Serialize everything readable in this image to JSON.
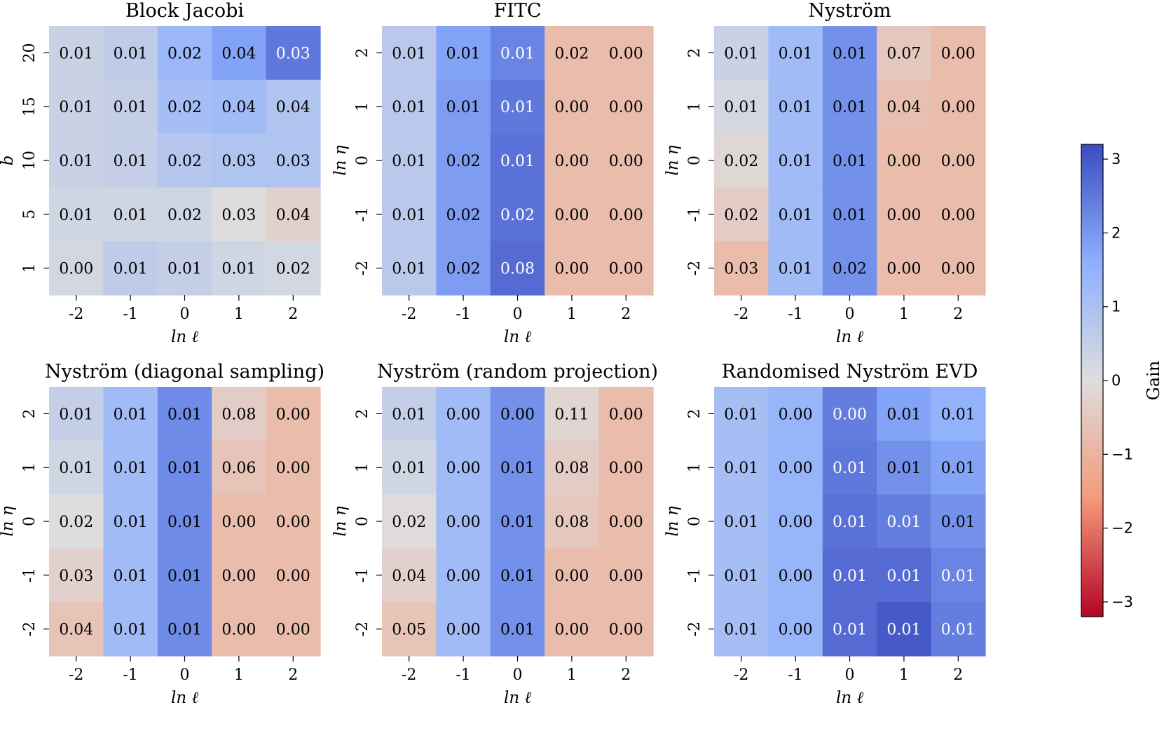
{
  "colormap": {
    "name": "coolwarm",
    "vmin": -3.2,
    "vmax": 3.2,
    "low_color": "#b40426",
    "mid_color": "#dddddd",
    "high_color": "#3b4cc0"
  },
  "colorbar": {
    "label": "Gain",
    "ticks": [
      "3",
      "2",
      "1",
      "0",
      "−1",
      "−2",
      "−3"
    ],
    "tick_values": [
      3,
      2,
      1,
      0,
      -1,
      -2,
      -3
    ]
  },
  "chart_data": [
    {
      "type": "heatmap",
      "title": "Block Jacobi",
      "xlabel": "ln ℓ",
      "ylabel": "b",
      "x_ticks": [
        "-2",
        "-1",
        "0",
        "1",
        "2"
      ],
      "y_ticks": [
        "20",
        "15",
        "10",
        "5",
        "1"
      ],
      "labels": [
        [
          "0.01",
          "0.01",
          "0.02",
          "0.04",
          "0.03"
        ],
        [
          "0.01",
          "0.01",
          "0.02",
          "0.04",
          "0.04"
        ],
        [
          "0.01",
          "0.01",
          "0.02",
          "0.03",
          "0.03"
        ],
        [
          "0.01",
          "0.01",
          "0.02",
          "0.03",
          "0.04"
        ],
        [
          "0.00",
          "0.01",
          "0.01",
          "0.01",
          "0.02"
        ]
      ],
      "gain": [
        [
          0.4,
          0.6,
          1.3,
          1.8,
          2.5
        ],
        [
          0.4,
          0.5,
          1.1,
          1.2,
          0.9
        ],
        [
          0.4,
          0.5,
          0.8,
          0.9,
          0.9
        ],
        [
          0.3,
          0.3,
          0.3,
          0.0,
          -0.3
        ],
        [
          0.2,
          0.6,
          0.5,
          0.3,
          0.2
        ]
      ]
    },
    {
      "type": "heatmap",
      "title": "FITC",
      "xlabel": "ln ℓ",
      "ylabel": "ln η",
      "x_ticks": [
        "-2",
        "-1",
        "0",
        "1",
        "2"
      ],
      "y_ticks": [
        "2",
        "1",
        "0",
        "-1",
        "-2"
      ],
      "labels": [
        [
          "0.01",
          "0.01",
          "0.01",
          "0.02",
          "0.00"
        ],
        [
          "0.01",
          "0.01",
          "0.01",
          "0.00",
          "0.00"
        ],
        [
          "0.01",
          "0.02",
          "0.01",
          "0.00",
          "0.00"
        ],
        [
          "0.01",
          "0.02",
          "0.02",
          "0.00",
          "0.00"
        ],
        [
          "0.01",
          "0.02",
          "0.08",
          "0.00",
          "0.00"
        ]
      ],
      "gain": [
        [
          0.7,
          1.8,
          2.3,
          -0.8,
          -0.8
        ],
        [
          0.7,
          1.9,
          2.5,
          -0.8,
          -0.8
        ],
        [
          0.7,
          1.9,
          2.6,
          -0.8,
          -0.8
        ],
        [
          0.7,
          1.9,
          2.6,
          -0.8,
          -0.8
        ],
        [
          0.7,
          1.9,
          2.7,
          -0.8,
          -0.8
        ]
      ]
    },
    {
      "type": "heatmap",
      "title": "Nyström",
      "xlabel": "ln ℓ",
      "ylabel": "ln η",
      "x_ticks": [
        "-2",
        "-1",
        "0",
        "1",
        "2"
      ],
      "y_ticks": [
        "2",
        "1",
        "0",
        "-1",
        "-2"
      ],
      "labels": [
        [
          "0.01",
          "0.01",
          "0.01",
          "0.07",
          "0.00"
        ],
        [
          "0.01",
          "0.01",
          "0.01",
          "0.04",
          "0.00"
        ],
        [
          "0.02",
          "0.01",
          "0.01",
          "0.00",
          "0.00"
        ],
        [
          "0.02",
          "0.01",
          "0.01",
          "0.00",
          "0.00"
        ],
        [
          "0.03",
          "0.01",
          "0.02",
          "0.00",
          "0.00"
        ]
      ],
      "gain": [
        [
          0.4,
          1.2,
          2.1,
          -0.5,
          -0.8
        ],
        [
          0.2,
          1.2,
          2.1,
          -0.7,
          -0.8
        ],
        [
          -0.15,
          1.2,
          2.1,
          -0.8,
          -0.8
        ],
        [
          -0.4,
          1.2,
          2.1,
          -0.8,
          -0.8
        ],
        [
          -0.8,
          1.2,
          2.1,
          -0.8,
          -0.8
        ]
      ]
    },
    {
      "type": "heatmap",
      "title": "Nyström (diagonal sampling)",
      "xlabel": "ln ℓ",
      "ylabel": "ln η",
      "x_ticks": [
        "-2",
        "-1",
        "0",
        "1",
        "2"
      ],
      "y_ticks": [
        "2",
        "1",
        "0",
        "-1",
        "-2"
      ],
      "labels": [
        [
          "0.01",
          "0.01",
          "0.01",
          "0.08",
          "0.00"
        ],
        [
          "0.01",
          "0.01",
          "0.01",
          "0.06",
          "0.00"
        ],
        [
          "0.02",
          "0.01",
          "0.01",
          "0.00",
          "0.00"
        ],
        [
          "0.03",
          "0.01",
          "0.01",
          "0.00",
          "0.00"
        ],
        [
          "0.04",
          "0.01",
          "0.01",
          "0.00",
          "0.00"
        ]
      ],
      "gain": [
        [
          0.5,
          1.2,
          2.2,
          -0.4,
          -0.8
        ],
        [
          0.3,
          1.2,
          2.2,
          -0.6,
          -0.8
        ],
        [
          0.0,
          1.2,
          2.2,
          -0.8,
          -0.8
        ],
        [
          -0.3,
          1.2,
          2.2,
          -0.8,
          -0.8
        ],
        [
          -0.6,
          1.2,
          2.2,
          -0.8,
          -0.8
        ]
      ]
    },
    {
      "type": "heatmap",
      "title": "Nyström (random projection)",
      "xlabel": "ln ℓ",
      "ylabel": "ln η",
      "x_ticks": [
        "-2",
        "-1",
        "0",
        "1",
        "2"
      ],
      "y_ticks": [
        "2",
        "1",
        "0",
        "-1",
        "-2"
      ],
      "labels": [
        [
          "0.01",
          "0.00",
          "0.00",
          "0.11",
          "0.00"
        ],
        [
          "0.01",
          "0.00",
          "0.01",
          "0.08",
          "0.00"
        ],
        [
          "0.02",
          "0.00",
          "0.01",
          "0.08",
          "0.00"
        ],
        [
          "0.04",
          "0.00",
          "0.01",
          "0.00",
          "0.00"
        ],
        [
          "0.05",
          "0.00",
          "0.01",
          "0.00",
          "0.00"
        ]
      ],
      "gain": [
        [
          0.5,
          1.2,
          2.1,
          -0.2,
          -0.8
        ],
        [
          0.3,
          1.2,
          2.1,
          -0.4,
          -0.8
        ],
        [
          -0.05,
          1.2,
          2.1,
          -0.5,
          -0.8
        ],
        [
          -0.3,
          1.2,
          2.1,
          -0.8,
          -0.8
        ],
        [
          -0.6,
          1.2,
          2.1,
          -0.8,
          -0.8
        ]
      ]
    },
    {
      "type": "heatmap",
      "title": "Randomised Nyström EVD",
      "xlabel": "ln ℓ",
      "ylabel": "ln η",
      "x_ticks": [
        "-2",
        "-1",
        "0",
        "1",
        "2"
      ],
      "y_ticks": [
        "2",
        "1",
        "0",
        "-1",
        "-2"
      ],
      "labels": [
        [
          "0.01",
          "0.00",
          "0.00",
          "0.01",
          "0.01"
        ],
        [
          "0.01",
          "0.00",
          "0.01",
          "0.01",
          "0.01"
        ],
        [
          "0.01",
          "0.00",
          "0.01",
          "0.01",
          "0.01"
        ],
        [
          "0.01",
          "0.00",
          "0.01",
          "0.01",
          "0.01"
        ],
        [
          "0.01",
          "0.00",
          "0.01",
          "0.01",
          "0.01"
        ]
      ],
      "gain": [
        [
          1.1,
          1.4,
          2.4,
          1.8,
          1.5
        ],
        [
          1.1,
          1.4,
          2.5,
          2.1,
          1.8
        ],
        [
          1.1,
          1.4,
          2.6,
          2.4,
          2.1
        ],
        [
          1.1,
          1.4,
          2.7,
          2.7,
          2.3
        ],
        [
          1.1,
          1.4,
          2.7,
          3.0,
          2.4
        ]
      ]
    }
  ]
}
